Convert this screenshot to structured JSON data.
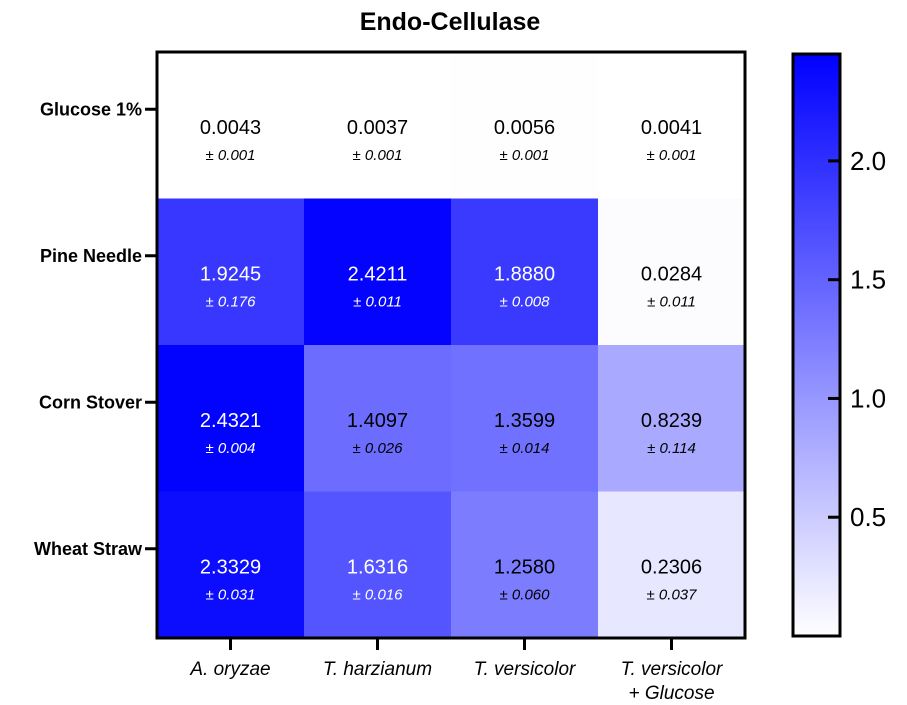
{
  "chart_data": {
    "type": "heatmap",
    "title": "Endo-Cellulase",
    "rows": [
      "Glucose 1%",
      "Pine Needle",
      "Corn Stover",
      "Wheat Straw"
    ],
    "columns": [
      {
        "line1": "A. oryzae",
        "line2": ""
      },
      {
        "line1": "T. harzianum",
        "line2": ""
      },
      {
        "line1": "T. versicolor",
        "line2": ""
      },
      {
        "line1": "T. versicolor",
        "line2": "+ Glucose"
      }
    ],
    "values": [
      [
        0.0043,
        0.0037,
        0.0056,
        0.0041
      ],
      [
        1.9245,
        2.4211,
        1.888,
        0.0284
      ],
      [
        2.4321,
        1.4097,
        1.3599,
        0.8239
      ],
      [
        2.3329,
        1.6316,
        1.258,
        0.2306
      ]
    ],
    "value_labels": [
      [
        "0.0043",
        "0.0037",
        "0.0056",
        "0.0041"
      ],
      [
        "1.9245",
        "2.4211",
        "1.8880",
        "0.0284"
      ],
      [
        "2.4321",
        "1.4097",
        "1.3599",
        "0.8239"
      ],
      [
        "2.3329",
        "1.6316",
        "1.2580",
        "0.2306"
      ]
    ],
    "error_labels": [
      [
        "± 0.001",
        "± 0.001",
        "± 0.001",
        "± 0.001"
      ],
      [
        "± 0.176",
        "± 0.011",
        "± 0.008",
        "± 0.011"
      ],
      [
        "± 0.004",
        "± 0.026",
        "± 0.014",
        "± 0.114"
      ],
      [
        "± 0.031",
        "± 0.016",
        "± 0.060",
        "± 0.037"
      ]
    ],
    "colorbar": {
      "min": 0,
      "max": 2.45,
      "ticks": [
        0.5,
        1.0,
        1.5,
        2.0
      ],
      "tick_labels": [
        "0.5",
        "1.0",
        "1.5",
        "2.0"
      ],
      "color_low": "#ffffff",
      "color_high": "#0000ff"
    },
    "colors": {
      "text_dark": "#000000",
      "text_light": "#ffffff"
    }
  }
}
